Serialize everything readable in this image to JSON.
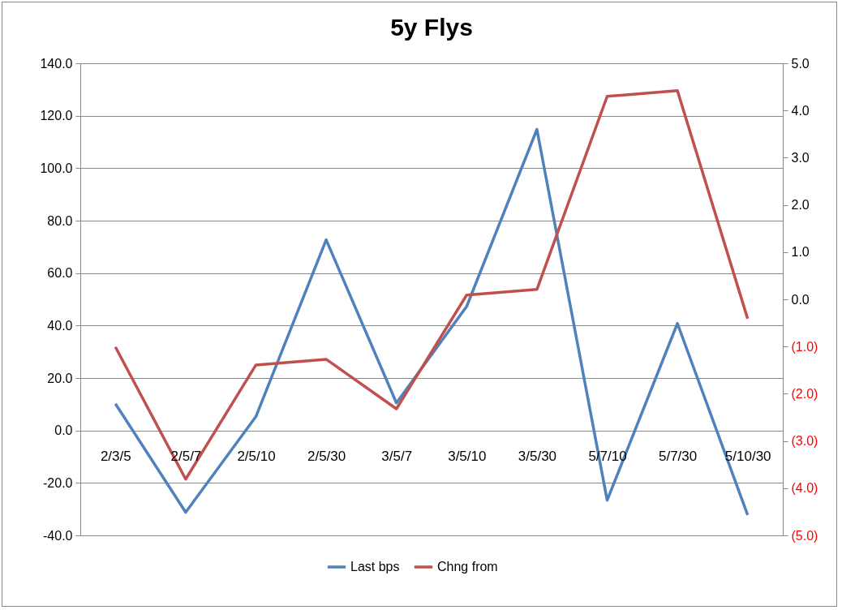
{
  "chart_data": {
    "type": "line",
    "title": "5y Flys",
    "categories": [
      "2/3/5",
      "2/5/7",
      "2/5/10",
      "2/5/30",
      "3/5/7",
      "3/5/10",
      "3/5/30",
      "5/7/10",
      "5/7/30",
      "5/10/30"
    ],
    "series": [
      {
        "name": "Last bps",
        "color": "#4f81bd",
        "values": [
          10.2,
          -31.2,
          5.3,
          72.7,
          10.5,
          47.3,
          114.8,
          -26.6,
          40.8,
          -32.2
        ]
      },
      {
        "name": "Chng from",
        "color": "#c0504d",
        "axis": "y2",
        "values": [
          -1.01,
          -3.81,
          -1.39,
          -1.27,
          -2.32,
          0.09,
          0.21,
          4.3,
          4.42,
          -0.41
        ]
      }
    ],
    "ylim": [
      -40,
      140
    ],
    "yticks": [
      {
        "value": -40,
        "label": "-40.0"
      },
      {
        "value": -20,
        "label": "-20.0"
      },
      {
        "value": 0,
        "label": "0.0"
      },
      {
        "value": 20,
        "label": "20.0"
      },
      {
        "value": 40,
        "label": "40.0"
      },
      {
        "value": 60,
        "label": "60.0"
      },
      {
        "value": 80,
        "label": "80.0"
      },
      {
        "value": 100,
        "label": "100.0"
      },
      {
        "value": 120,
        "label": "120.0"
      },
      {
        "value": 140,
        "label": "140.0"
      }
    ],
    "y2lim": [
      -5,
      5
    ],
    "y2ticks": [
      {
        "value": -5,
        "label": "(5.0)"
      },
      {
        "value": -4,
        "label": "(4.0)"
      },
      {
        "value": -3,
        "label": "(3.0)"
      },
      {
        "value": -2,
        "label": "(2.0)"
      },
      {
        "value": -1,
        "label": "(1.0)"
      },
      {
        "value": 0,
        "label": "0.0"
      },
      {
        "value": 1,
        "label": "1.0"
      },
      {
        "value": 2,
        "label": "2.0"
      },
      {
        "value": 3,
        "label": "3.0"
      },
      {
        "value": 4,
        "label": "4.0"
      },
      {
        "value": 5,
        "label": "5.0"
      }
    ],
    "grid": "y",
    "legend": "bottom",
    "line_style": "solid"
  }
}
